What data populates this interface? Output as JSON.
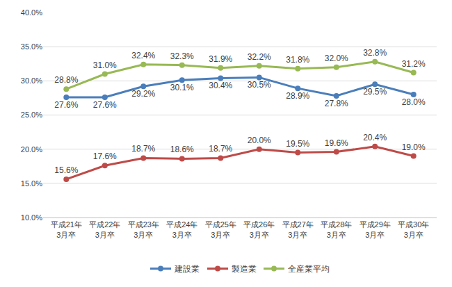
{
  "chart_data": {
    "type": "line",
    "categories": [
      "平成21年\n3月卒",
      "平成22年\n3月卒",
      "平成23年\n3月卒",
      "平成24年\n3月卒",
      "平成25年\n3月卒",
      "平成26年\n3月卒",
      "平成27年\n3月卒",
      "平成28年\n3月卒",
      "平成29年\n3月卒",
      "平成30年\n3月卒"
    ],
    "series": [
      {
        "name": "建設業",
        "color": "#4a7ebb",
        "marker": "circle",
        "values": [
          27.6,
          27.6,
          29.2,
          30.1,
          30.4,
          30.5,
          28.9,
          27.8,
          29.5,
          28.0
        ],
        "value_labels": [
          "27.6%",
          "27.6%",
          "29.2%",
          "30.1%",
          "30.4%",
          "30.5%",
          "28.9%",
          "27.8%",
          "29.5%",
          "28.0%"
        ]
      },
      {
        "name": "製造業",
        "color": "#be4b48",
        "marker": "circle",
        "values": [
          15.6,
          17.6,
          18.7,
          18.6,
          18.7,
          20.0,
          19.5,
          19.6,
          20.4,
          19.0
        ],
        "value_labels": [
          "15.6%",
          "17.6%",
          "18.7%",
          "18.6%",
          "18.7%",
          "20.0%",
          "19.5%",
          "19.6%",
          "20.4%",
          "19.0%"
        ]
      },
      {
        "name": "全産業平均",
        "color": "#98b954",
        "marker": "circle",
        "values": [
          28.8,
          31.0,
          32.4,
          32.3,
          31.9,
          32.2,
          31.8,
          32.0,
          32.8,
          31.2
        ],
        "value_labels": [
          "28.8%",
          "31.0%",
          "32.4%",
          "32.3%",
          "31.9%",
          "32.2%",
          "31.8%",
          "32.0%",
          "32.8%",
          "31.2%"
        ]
      }
    ],
    "ylim": [
      10,
      40
    ],
    "yticks": [
      {
        "value": 10,
        "label": "10.0%"
      },
      {
        "value": 15,
        "label": "15.0%"
      },
      {
        "value": 20,
        "label": "20.0%"
      },
      {
        "value": 25,
        "label": "25.0%"
      },
      {
        "value": 30,
        "label": "30.0%"
      },
      {
        "value": 35,
        "label": "35.0%"
      },
      {
        "value": 40,
        "label": "40.0%"
      }
    ],
    "grid": true,
    "data_labels": true,
    "legend": "bottom"
  }
}
